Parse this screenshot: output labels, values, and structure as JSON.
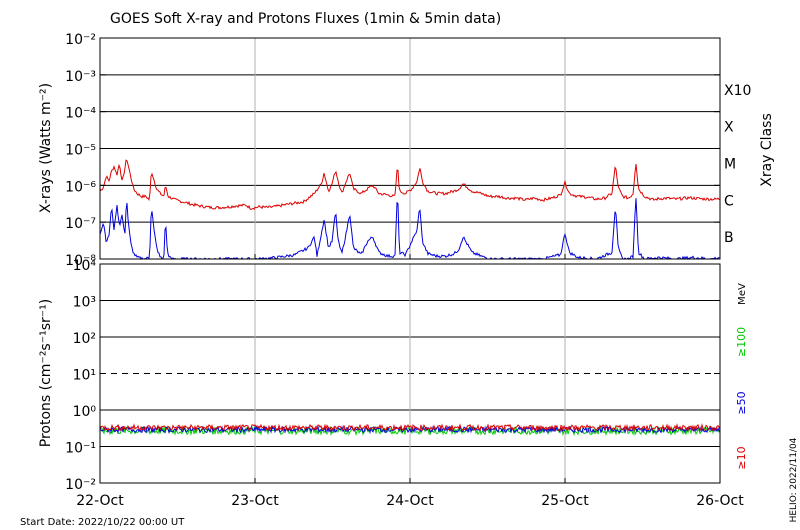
{
  "colors": {
    "long": "#dd0000",
    "short": "#0000dd",
    "p10": "#dd0000",
    "p50": "#0000dd",
    "p100": "#00cc00",
    "grid": "#000000",
    "day_line": "#b0b0b0"
  },
  "chart_data": [
    {
      "type": "line",
      "title": "GOES Soft X-ray and Protons Fluxes   (1min & 5min data)",
      "ylabel": "X-rays (Watts m⁻²)",
      "right_label": "Xray Class",
      "scale": "log",
      "ylim": [
        1e-08,
        0.01
      ],
      "yticks": [
        {
          "value": 1e-08,
          "label": "10⁻⁸"
        },
        {
          "value": 1e-07,
          "label": "10⁻⁷"
        },
        {
          "value": 1e-06,
          "label": "10⁻⁶"
        },
        {
          "value": 1e-05,
          "label": "10⁻⁵"
        },
        {
          "value": 0.0001,
          "label": "10⁻⁴"
        },
        {
          "value": 0.001,
          "label": "10⁻³"
        },
        {
          "value": 0.01,
          "label": "10⁻²"
        }
      ],
      "flare_classes": [
        {
          "label": "X10",
          "value": 0.001
        },
        {
          "label": "X",
          "value": 0.0001
        },
        {
          "label": "M",
          "value": 1e-05
        },
        {
          "label": "C",
          "value": 1e-06
        },
        {
          "label": "B",
          "value": 1e-07
        }
      ],
      "xlim": [
        "2022-10-22 00:00",
        "2022-10-26 00:00"
      ],
      "x_unit": "days since 2022-10-22 00:00 UT",
      "series": [
        {
          "name": "",
          "color": "long",
          "points": [
            [
              0,
              7e-07
            ],
            [
              0.04,
              9e-07
            ],
            [
              0.07,
              1.8e-06
            ],
            [
              0.1,
              1.3e-06
            ],
            [
              0.13,
              2.4e-06
            ],
            [
              0.16,
              3.3e-06
            ],
            [
              0.19,
              1.9e-06
            ],
            [
              0.22,
              4e-06
            ],
            [
              0.25,
              1.2e-06
            ],
            [
              0.28,
              2.8e-06
            ],
            [
              0.3,
              5.5e-06
            ],
            [
              0.32,
              3.4e-06
            ],
            [
              0.35,
              1.6e-06
            ],
            [
              0.38,
              8e-07
            ],
            [
              0.42,
              6e-07
            ],
            [
              0.47,
              5e-07
            ],
            [
              0.52,
              5e-07
            ],
            [
              0.56,
              4e-07
            ],
            [
              0.58,
              2.5e-06
            ],
            [
              0.61,
              1.4e-06
            ],
            [
              0.64,
              8e-07
            ],
            [
              0.68,
              6e-07
            ],
            [
              0.72,
              5e-07
            ],
            [
              0.74,
              1e-06
            ],
            [
              0.77,
              5e-07
            ],
            [
              0.85,
              4e-07
            ],
            [
              0.95,
              3.5e-07
            ],
            [
              1.05,
              3e-07
            ],
            [
              1.15,
              2.7e-07
            ],
            [
              1.25,
              2.5e-07
            ],
            [
              1.35,
              2.5e-07
            ],
            [
              1.45,
              2.6e-07
            ],
            [
              1.55,
              2.8e-07
            ],
            [
              1.65,
              2.9e-07
            ],
            [
              1.7,
              2.4e-07
            ],
            [
              1.8,
              2.6e-07
            ],
            [
              1.9,
              2.5e-07
            ],
            [
              2.0,
              2.7e-07
            ],
            [
              2.1,
              3e-07
            ],
            [
              2.3,
              3.6e-07
            ],
            [
              2.42,
              6e-07
            ],
            [
              2.5,
              1.1e-06
            ],
            [
              2.53,
              2.2e-06
            ],
            [
              2.58,
              7e-07
            ],
            [
              2.62,
              1.1e-06
            ],
            [
              2.66,
              2.6e-06
            ],
            [
              2.69,
              1.3e-06
            ],
            [
              2.73,
              6e-07
            ],
            [
              2.78,
              1.3e-06
            ],
            [
              2.82,
              2.2e-06
            ],
            [
              2.86,
              8e-07
            ],
            [
              2.95,
              6e-07
            ],
            [
              3.02,
              8e-07
            ],
            [
              3.08,
              1e-06
            ],
            [
              3.15,
              6e-07
            ],
            [
              3.25,
              5.5e-07
            ],
            [
              3.33,
              5e-07
            ],
            [
              3.36,
              3.8e-06
            ],
            [
              3.38,
              7e-07
            ],
            [
              3.45,
              6e-07
            ],
            [
              3.52,
              8e-07
            ],
            [
              3.58,
              1.3e-06
            ],
            [
              3.61,
              3.1e-06
            ],
            [
              3.64,
              1.3e-06
            ],
            [
              3.7,
              7e-07
            ],
            [
              3.8,
              6e-07
            ],
            [
              3.9,
              6e-07
            ],
            [
              4.0,
              7e-07
            ],
            [
              4.05,
              8e-07
            ],
            [
              4.1,
              1.1e-06
            ],
            [
              4.2,
              7e-07
            ],
            [
              4.3,
              6e-07
            ],
            [
              4.4,
              5e-07
            ],
            [
              4.5,
              5e-07
            ],
            [
              4.6,
              4.5e-07
            ],
            [
              4.7,
              4.5e-07
            ],
            [
              4.8,
              4e-07
            ],
            [
              4.9,
              4.5e-07
            ],
            [
              5.0,
              4e-07
            ],
            [
              5.1,
              4.5e-07
            ],
            [
              5.2,
              5.5e-07
            ],
            [
              5.25,
              1.2e-06
            ],
            [
              5.3,
              6e-07
            ],
            [
              5.4,
              5e-07
            ],
            [
              5.5,
              4.8e-07
            ],
            [
              5.6,
              4.2e-07
            ],
            [
              5.7,
              4.5e-07
            ],
            [
              5.78,
              6e-07
            ],
            [
              5.82,
              3.6e-06
            ],
            [
              5.85,
              9e-07
            ],
            [
              5.9,
              5e-07
            ],
            [
              5.97,
              4.5e-07
            ],
            [
              6.02,
              6e-07
            ],
            [
              6.05,
              4.5e-06
            ],
            [
              6.08,
              8e-07
            ],
            [
              6.15,
              5e-07
            ],
            [
              6.25,
              4e-07
            ],
            [
              6.3,
              4.3e-07
            ],
            [
              6.4,
              4.5e-07
            ],
            [
              6.5,
              4.2e-07
            ],
            [
              6.65,
              4.6e-07
            ],
            [
              6.8,
              4.3e-07
            ],
            [
              6.95,
              4.2e-07
            ],
            [
              7.0,
              4.3e-07
            ]
          ],
          "time_scale": 0.5714
        },
        {
          "name": "",
          "color": "short",
          "points": [
            [
              0,
              5e-08
            ],
            [
              0.04,
              1e-07
            ],
            [
              0.07,
              3e-08
            ],
            [
              0.1,
              4e-08
            ],
            [
              0.13,
              2.6e-07
            ],
            [
              0.16,
              6e-08
            ],
            [
              0.19,
              3e-07
            ],
            [
              0.22,
              8e-08
            ],
            [
              0.25,
              1.6e-07
            ],
            [
              0.28,
              4e-08
            ],
            [
              0.3,
              5e-07
            ],
            [
              0.32,
              9e-08
            ],
            [
              0.35,
              2.5e-08
            ],
            [
              0.38,
              1.4e-08
            ],
            [
              0.42,
              1.1e-08
            ],
            [
              0.5,
              1e-08
            ],
            [
              0.56,
              1.1e-08
            ],
            [
              0.58,
              3e-07
            ],
            [
              0.61,
              6e-08
            ],
            [
              0.64,
              2e-08
            ],
            [
              0.68,
              1.1e-08
            ],
            [
              0.72,
              1e-08
            ],
            [
              0.74,
              1.3e-07
            ],
            [
              0.76,
              1.5e-08
            ],
            [
              0.8,
              1e-08
            ],
            [
              1.0,
              1e-08
            ],
            [
              1.3,
              1e-08
            ],
            [
              1.6,
              1e-08
            ],
            [
              1.8,
              1e-08
            ],
            [
              2.0,
              1.1e-08
            ],
            [
              2.2,
              1.3e-08
            ],
            [
              2.35,
              2e-08
            ],
            [
              2.42,
              4e-08
            ],
            [
              2.45,
              1.2e-08
            ],
            [
              2.5,
              5e-08
            ],
            [
              2.53,
              1.2e-07
            ],
            [
              2.58,
              2e-08
            ],
            [
              2.62,
              3e-08
            ],
            [
              2.66,
              2e-07
            ],
            [
              2.69,
              3e-08
            ],
            [
              2.73,
              1.4e-08
            ],
            [
              2.78,
              5e-08
            ],
            [
              2.82,
              1.8e-07
            ],
            [
              2.86,
              2e-08
            ],
            [
              2.95,
              1.3e-08
            ],
            [
              3.02,
              3e-08
            ],
            [
              3.08,
              4e-08
            ],
            [
              3.15,
              1.5e-08
            ],
            [
              3.25,
              1.2e-08
            ],
            [
              3.33,
              1.2e-08
            ],
            [
              3.36,
              8e-07
            ],
            [
              3.38,
              1.5e-08
            ],
            [
              3.45,
              1.3e-08
            ],
            [
              3.52,
              3e-08
            ],
            [
              3.58,
              6e-08
            ],
            [
              3.61,
              2.8e-07
            ],
            [
              3.64,
              3e-08
            ],
            [
              3.7,
              1.4e-08
            ],
            [
              3.8,
              1.2e-08
            ],
            [
              3.9,
              1.2e-08
            ],
            [
              4.0,
              1.4e-08
            ],
            [
              4.05,
              1.8e-08
            ],
            [
              4.1,
              4e-08
            ],
            [
              4.2,
              1.5e-08
            ],
            [
              4.3,
              1.2e-08
            ],
            [
              4.4,
              1e-08
            ],
            [
              4.6,
              1e-08
            ],
            [
              4.8,
              1e-08
            ],
            [
              5.0,
              1e-08
            ],
            [
              5.2,
              1.3e-08
            ],
            [
              5.25,
              5e-08
            ],
            [
              5.3,
              1.5e-08
            ],
            [
              5.4,
              1.1e-08
            ],
            [
              5.6,
              1e-08
            ],
            [
              5.78,
              1.5e-08
            ],
            [
              5.82,
              3e-07
            ],
            [
              5.85,
              2e-08
            ],
            [
              5.9,
              1e-08
            ],
            [
              5.97,
              1e-08
            ],
            [
              6.02,
              1.2e-08
            ],
            [
              6.05,
              6e-07
            ],
            [
              6.08,
              1.5e-08
            ],
            [
              6.15,
              1e-08
            ],
            [
              6.3,
              1.1e-08
            ],
            [
              6.5,
              1e-08
            ],
            [
              6.7,
              1.1e-08
            ],
            [
              6.9,
              1e-08
            ],
            [
              7.0,
              1.1e-08
            ]
          ],
          "time_scale": 0.5714
        }
      ]
    },
    {
      "type": "line",
      "ylabel": "Protons (cm⁻²s⁻¹sr⁻¹)",
      "scale": "log",
      "ylim": [
        0.01,
        10000.0
      ],
      "yticks": [
        {
          "value": 0.01,
          "label": "10⁻²"
        },
        {
          "value": 0.1,
          "label": "10⁻¹"
        },
        {
          "value": 1.0,
          "label": "10⁰"
        },
        {
          "value": 10.0,
          "label": "10¹"
        },
        {
          "value": 100.0,
          "label": "10²"
        },
        {
          "value": 1000.0,
          "label": "10³"
        },
        {
          "value": 10000.0,
          "label": "10⁴"
        }
      ],
      "dashed_threshold": 10,
      "energy_unit": "MeV",
      "energy_labels": [
        {
          "label": "≥100",
          "color": "p100"
        },
        {
          "label": "≥50",
          "color": "p50"
        },
        {
          "label": "≥10",
          "color": "p10"
        }
      ],
      "series": [
        {
          "name": "≥10",
          "color": "p10",
          "base": 0.33,
          "noise": 0.15
        },
        {
          "name": "≥50",
          "color": "p50",
          "base": 0.29,
          "noise": 0.15
        },
        {
          "name": "≥100",
          "color": "p100",
          "base": 0.27,
          "noise": 0.2
        }
      ]
    }
  ],
  "x_ticks": [
    "22-Oct",
    "23-Oct",
    "24-Oct",
    "25-Oct",
    "26-Oct"
  ],
  "start_date": "Start Date: 2022/10/22 00:00 UT",
  "credit": "HELIO: 2022/11/04"
}
